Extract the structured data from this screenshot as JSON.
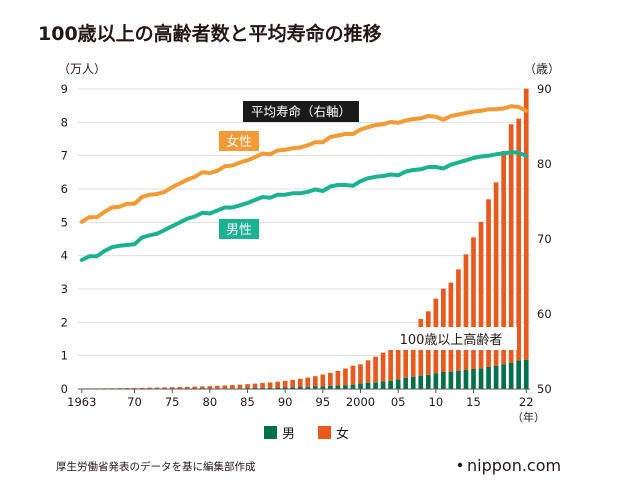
{
  "chart_data": {
    "type": "bar",
    "title": "100歳以上の高齢者数と平均寿命の推移",
    "left_axis_unit": "（万人）",
    "right_axis_unit": "（歳）",
    "x_unit": "（年）",
    "left_ylim": [
      0,
      9
    ],
    "right_ylim": [
      50,
      90
    ],
    "left_ticks": [
      "0",
      "1",
      "2",
      "3",
      "4",
      "5",
      "6",
      "7",
      "8",
      "9"
    ],
    "right_ticks": [
      "50",
      "60",
      "70",
      "80",
      "90"
    ],
    "x_ticks": [
      {
        "year": 1963,
        "label": "1963"
      },
      {
        "year": 1970,
        "label": "70"
      },
      {
        "year": 1975,
        "label": "75"
      },
      {
        "year": 1980,
        "label": "80"
      },
      {
        "year": 1985,
        "label": "85"
      },
      {
        "year": 1990,
        "label": "90"
      },
      {
        "year": 1995,
        "label": "95"
      },
      {
        "year": 2000,
        "label": "2000"
      },
      {
        "year": 2005,
        "label": "05"
      },
      {
        "year": 2010,
        "label": "10"
      },
      {
        "year": 2015,
        "label": "15"
      },
      {
        "year": 2022,
        "label": "22"
      }
    ],
    "years": [
      1963,
      1964,
      1965,
      1966,
      1967,
      1968,
      1969,
      1970,
      1971,
      1972,
      1973,
      1974,
      1975,
      1976,
      1977,
      1978,
      1979,
      1980,
      1981,
      1982,
      1983,
      1984,
      1985,
      1986,
      1987,
      1988,
      1989,
      1990,
      1991,
      1992,
      1993,
      1994,
      1995,
      1996,
      1997,
      1998,
      1999,
      2000,
      2001,
      2002,
      2003,
      2004,
      2005,
      2006,
      2007,
      2008,
      2009,
      2010,
      2011,
      2012,
      2013,
      2014,
      2015,
      2016,
      2017,
      2018,
      2019,
      2020,
      2021,
      2022
    ],
    "bar_series": [
      {
        "name": "男",
        "color": "#00704a",
        "values": [
          0.003,
          0.003,
          0.004,
          0.004,
          0.005,
          0.005,
          0.006,
          0.006,
          0.007,
          0.008,
          0.009,
          0.01,
          0.011,
          0.012,
          0.013,
          0.014,
          0.015,
          0.017,
          0.019,
          0.021,
          0.023,
          0.025,
          0.028,
          0.031,
          0.034,
          0.038,
          0.042,
          0.048,
          0.054,
          0.06,
          0.067,
          0.075,
          0.083,
          0.093,
          0.103,
          0.115,
          0.13,
          0.17,
          0.19,
          0.2,
          0.23,
          0.25,
          0.29,
          0.34,
          0.37,
          0.4,
          0.43,
          0.47,
          0.51,
          0.52,
          0.55,
          0.58,
          0.6,
          0.62,
          0.66,
          0.7,
          0.74,
          0.79,
          0.86,
          0.88
        ]
      },
      {
        "name": "女",
        "color": "#e8591e",
        "values": [
          0.012,
          0.014,
          0.015,
          0.016,
          0.018,
          0.02,
          0.022,
          0.025,
          0.027,
          0.03,
          0.034,
          0.038,
          0.042,
          0.047,
          0.051,
          0.056,
          0.062,
          0.069,
          0.076,
          0.085,
          0.095,
          0.105,
          0.117,
          0.13,
          0.145,
          0.16,
          0.177,
          0.197,
          0.22,
          0.245,
          0.275,
          0.31,
          0.35,
          0.39,
          0.44,
          0.5,
          0.57,
          0.57,
          0.67,
          0.77,
          0.86,
          0.98,
          1.08,
          1.3,
          1.47,
          1.7,
          1.9,
          2.24,
          2.5,
          2.67,
          3.04,
          3.46,
          3.95,
          4.39,
          5.03,
          5.5,
          6.4,
          7.15,
          7.25,
          8.13
        ]
      }
    ],
    "line_series": [
      {
        "name": "女性",
        "color": "#f39a35",
        "values": [
          72.3,
          72.9,
          72.9,
          73.6,
          74.2,
          74.3,
          74.7,
          74.7,
          75.6,
          75.9,
          76.0,
          76.3,
          76.9,
          77.4,
          77.9,
          78.3,
          78.9,
          78.8,
          79.1,
          79.7,
          79.8,
          80.2,
          80.5,
          80.9,
          81.4,
          81.3,
          81.8,
          81.9,
          82.1,
          82.2,
          82.5,
          82.9,
          82.9,
          83.6,
          83.8,
          84.0,
          84.0,
          84.6,
          84.9,
          85.2,
          85.3,
          85.6,
          85.5,
          85.8,
          86.0,
          86.1,
          86.4,
          86.3,
          85.9,
          86.4,
          86.6,
          86.8,
          87.0,
          87.1,
          87.3,
          87.3,
          87.4,
          87.7,
          87.6,
          87.1
        ]
      },
      {
        "name": "男性",
        "color": "#1bb38f",
        "values": [
          67.2,
          67.7,
          67.7,
          68.4,
          68.9,
          69.1,
          69.2,
          69.3,
          70.2,
          70.5,
          70.7,
          71.2,
          71.7,
          72.2,
          72.7,
          73.0,
          73.5,
          73.4,
          73.8,
          74.2,
          74.2,
          74.5,
          74.8,
          75.2,
          75.6,
          75.5,
          75.9,
          75.9,
          76.1,
          76.1,
          76.3,
          76.6,
          76.4,
          77.0,
          77.2,
          77.2,
          77.1,
          77.7,
          78.1,
          78.3,
          78.4,
          78.6,
          78.5,
          79.0,
          79.2,
          79.3,
          79.6,
          79.6,
          79.4,
          79.9,
          80.2,
          80.5,
          80.8,
          81.0,
          81.1,
          81.3,
          81.4,
          81.6,
          81.5,
          81.1
        ]
      }
    ],
    "labels": {
      "avg_life": "平均寿命（右軸）",
      "female": "女性",
      "male": "男性",
      "centenarians": "100歳以上高齢者"
    },
    "legend": [
      {
        "name": "男",
        "color": "#00704a"
      },
      {
        "name": "女",
        "color": "#e8591e"
      }
    ]
  },
  "footer": {
    "source": "厚生労働省発表のデータを基に編集部作成",
    "brand": "nippon.com"
  }
}
